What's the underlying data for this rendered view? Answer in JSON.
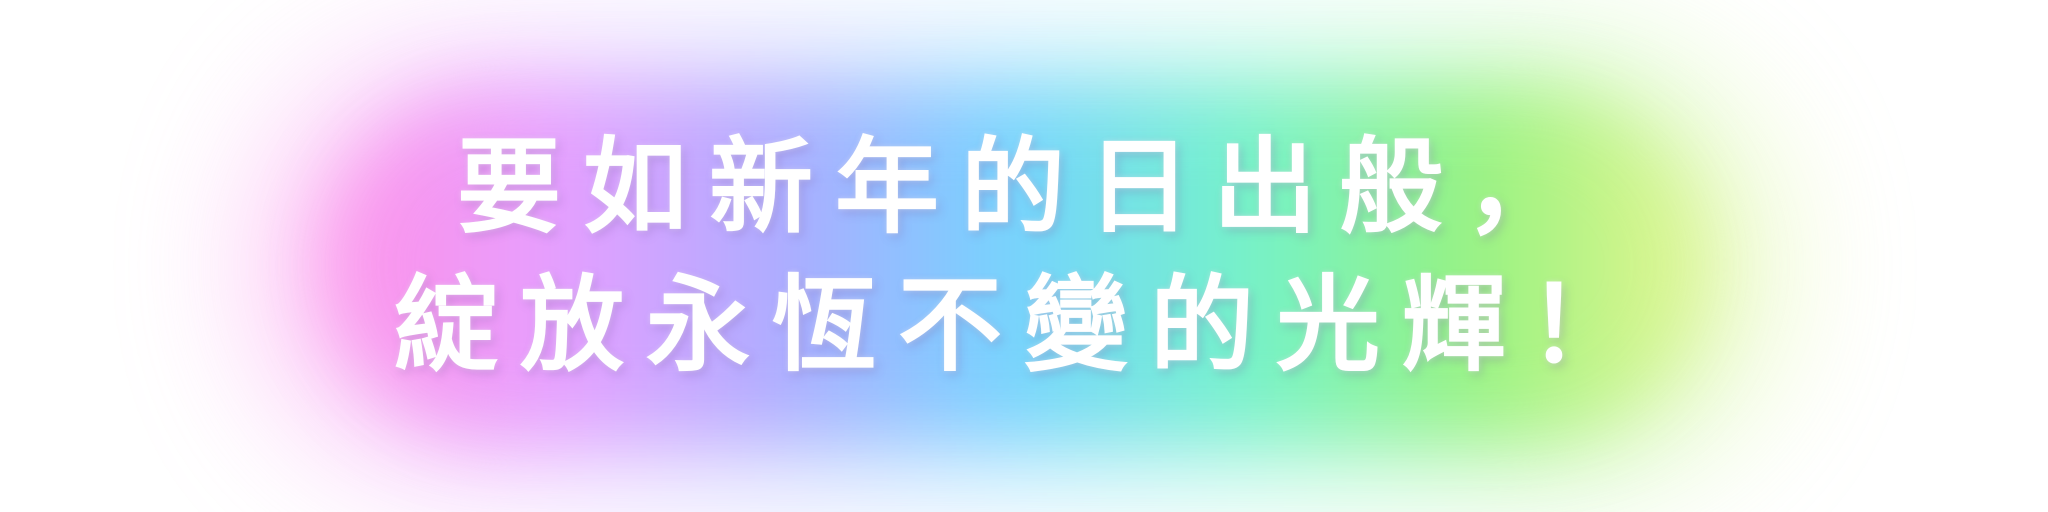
{
  "headline": {
    "line1": "要如新年的日出般，",
    "line2": "綻放永恆不變的光輝！"
  },
  "colors": {
    "background": "#ffffff",
    "text": "#ffffff",
    "glow_gradient": [
      "#ff8ce6",
      "#e69bff",
      "#a9a9ff",
      "#6fd2ff",
      "#6ff2c8",
      "#92f27c",
      "#e6f58a"
    ]
  }
}
